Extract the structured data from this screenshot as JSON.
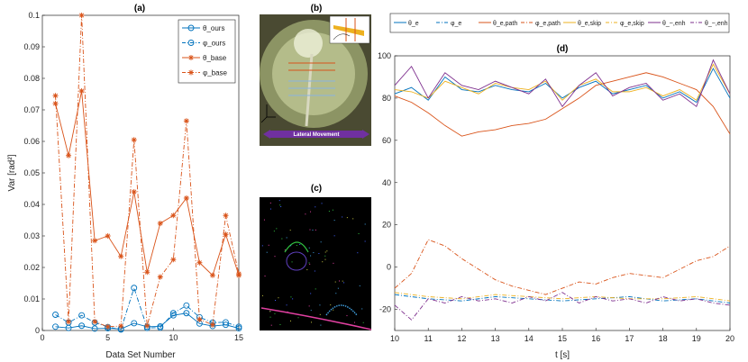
{
  "panels": {
    "a": {
      "label": "(a)"
    },
    "b": {
      "label": "(b)",
      "photo_caption": "Lateral Movement"
    },
    "c": {
      "label": "(c)"
    },
    "d": {
      "label": "(d)"
    }
  },
  "colors": {
    "blue": "#0072BD",
    "orange": "#D95319",
    "yellow": "#EDB120",
    "purple": "#7E2F8E",
    "lightblue": "#4DBEEE"
  },
  "chart_data": [
    {
      "type": "line",
      "panel": "a",
      "xlabel": "Data Set Number",
      "ylabel": "Var [rad²]",
      "xlim": [
        0,
        15
      ],
      "ylim": [
        0,
        0.1
      ],
      "xticks": [
        0,
        5,
        10,
        15
      ],
      "yticks": [
        0,
        0.01,
        0.02,
        0.03,
        0.04,
        0.05,
        0.06,
        0.07,
        0.08,
        0.09,
        0.1
      ],
      "ytick_labels": [
        "0",
        "0.01",
        "0.02",
        "0.03",
        "0.04",
        "0.05",
        "0.06",
        "0.07",
        "0.08",
        "0.09",
        "0.1"
      ],
      "legend_position": "top-right",
      "x": [
        1,
        2,
        3,
        4,
        5,
        6,
        7,
        8,
        9,
        10,
        11,
        12,
        13,
        14,
        15
      ],
      "series": [
        {
          "name": "θ_ours",
          "style": "solid",
          "marker": "circle",
          "color": "#0072BD",
          "values": [
            0.0012,
            0.0008,
            0.0015,
            0.0006,
            0.0007,
            0.0005,
            0.0023,
            0.0012,
            0.0013,
            0.0048,
            0.0055,
            0.0022,
            0.0014,
            0.0018,
            0.0007
          ]
        },
        {
          "name": "φ_ours",
          "style": "dashdot",
          "marker": "circle",
          "color": "#0072BD",
          "values": [
            0.005,
            0.0025,
            0.0048,
            0.0025,
            0.0011,
            0.0003,
            0.0135,
            0.0008,
            0.0009,
            0.0055,
            0.0079,
            0.0042,
            0.0025,
            0.0026,
            0.0012
          ]
        },
        {
          "name": "θ_base",
          "style": "solid",
          "marker": "star",
          "color": "#D95319",
          "values": [
            0.072,
            0.0555,
            0.076,
            0.0285,
            0.03,
            0.0235,
            0.044,
            0.0185,
            0.034,
            0.0365,
            0.042,
            0.0215,
            0.0175,
            0.0305,
            0.0175
          ]
        },
        {
          "name": "φ_base",
          "style": "dashdot",
          "marker": "star",
          "color": "#D95319",
          "values": [
            0.0745,
            0.0028,
            0.1,
            0.0028,
            0.0012,
            0.0014,
            0.0605,
            0.0015,
            0.017,
            0.0225,
            0.0665,
            0.0035,
            0.0018,
            0.0365,
            0.018
          ]
        }
      ]
    },
    {
      "type": "line",
      "panel": "d",
      "xlabel": "t [s]",
      "ylabel": "",
      "xlim": [
        10,
        20
      ],
      "ylim": [
        -30,
        100
      ],
      "xticks": [
        10,
        11,
        12,
        13,
        14,
        15,
        16,
        17,
        18,
        19,
        20
      ],
      "yticks": [
        -20,
        0,
        20,
        40,
        60,
        80,
        100
      ],
      "legend_position": "top",
      "series": [
        {
          "name": "θ_e",
          "style": "solid",
          "color": "#0072BD",
          "x": [
            10,
            10.5,
            11,
            11.5,
            12,
            12.5,
            13,
            13.5,
            14,
            14.5,
            15,
            15.5,
            16,
            16.5,
            17,
            17.5,
            18,
            18.5,
            19,
            19.5,
            20
          ],
          "values": [
            82,
            85,
            79,
            90,
            84,
            83,
            86,
            84,
            83,
            87,
            80,
            85,
            88,
            82,
            84,
            86,
            80,
            83,
            78,
            94,
            80
          ]
        },
        {
          "name": "φ_e",
          "style": "dashdot",
          "color": "#0072BD",
          "x": [
            10,
            11,
            12,
            13,
            14,
            15,
            16,
            17,
            18,
            19,
            20
          ],
          "values": [
            -13,
            -15,
            -16,
            -14,
            -15,
            -16,
            -15,
            -14,
            -16,
            -15,
            -17
          ]
        },
        {
          "name": "θ_e,path",
          "style": "solid",
          "color": "#D95319",
          "x": [
            10,
            10.5,
            11,
            11.5,
            12,
            12.5,
            13,
            13.5,
            14,
            14.5,
            15,
            15.5,
            16,
            16.5,
            17,
            17.5,
            18,
            18.5,
            19,
            19.5,
            20
          ],
          "values": [
            81,
            78,
            73,
            67,
            62,
            64,
            65,
            67,
            68,
            70,
            75,
            80,
            86,
            88,
            90,
            92,
            90,
            87,
            84,
            76,
            63
          ]
        },
        {
          "name": "φ_e,path",
          "style": "dashdot",
          "color": "#D95319",
          "x": [
            10,
            10.5,
            11,
            11.5,
            12,
            12.5,
            13,
            13.5,
            14,
            14.5,
            15,
            15.5,
            16,
            16.5,
            17,
            17.5,
            18,
            18.5,
            19,
            19.5,
            20
          ],
          "values": [
            -10,
            -3,
            13,
            10,
            4,
            -1,
            -6,
            -9,
            -11,
            -13,
            -10,
            -7,
            -8,
            -5,
            -3,
            -4,
            -5,
            -1,
            3,
            5,
            10
          ]
        },
        {
          "name": "θ_e,skip",
          "style": "solid",
          "color": "#EDB120",
          "x": [
            10,
            10.5,
            11,
            11.5,
            12,
            12.5,
            13,
            13.5,
            14,
            14.5,
            15,
            15.5,
            16,
            16.5,
            17,
            17.5,
            18,
            18.5,
            19,
            19.5,
            20
          ],
          "values": [
            84,
            83,
            80,
            88,
            85,
            82,
            87,
            85,
            84,
            88,
            79,
            86,
            89,
            83,
            83,
            85,
            81,
            84,
            79,
            96,
            82
          ]
        },
        {
          "name": "φ_e,skip",
          "style": "dashdot",
          "color": "#EDB120",
          "x": [
            10,
            11,
            12,
            13,
            14,
            15,
            16,
            17,
            18,
            19,
            20
          ],
          "values": [
            -12,
            -14,
            -15,
            -13,
            -14,
            -15,
            -14,
            -15,
            -15,
            -14,
            -16
          ]
        },
        {
          "name": "θ_~,enh",
          "style": "solid",
          "color": "#7E2F8E",
          "x": [
            10,
            10.5,
            11,
            11.5,
            12,
            12.5,
            13,
            13.5,
            14,
            14.5,
            15,
            15.5,
            16,
            16.5,
            17,
            17.5,
            18,
            18.5,
            19,
            19.5,
            20
          ],
          "values": [
            86,
            95,
            80,
            92,
            86,
            84,
            88,
            85,
            82,
            89,
            76,
            86,
            92,
            81,
            85,
            87,
            79,
            82,
            76,
            98,
            82
          ]
        },
        {
          "name": "θ_~,enh",
          "style": "dashdot",
          "color": "#7E2F8E",
          "x": [
            10,
            10.5,
            11,
            11.5,
            12,
            12.5,
            13,
            13.5,
            14,
            14.5,
            15,
            15.5,
            16,
            16.5,
            17,
            17.5,
            18,
            18.5,
            19,
            19.5,
            20
          ],
          "values": [
            -18,
            -25,
            -15,
            -17,
            -14,
            -16,
            -15,
            -17,
            -14,
            -16,
            -12,
            -17,
            -14,
            -16,
            -15,
            -17,
            -14,
            -16,
            -15,
            -17,
            -18
          ]
        }
      ]
    }
  ]
}
